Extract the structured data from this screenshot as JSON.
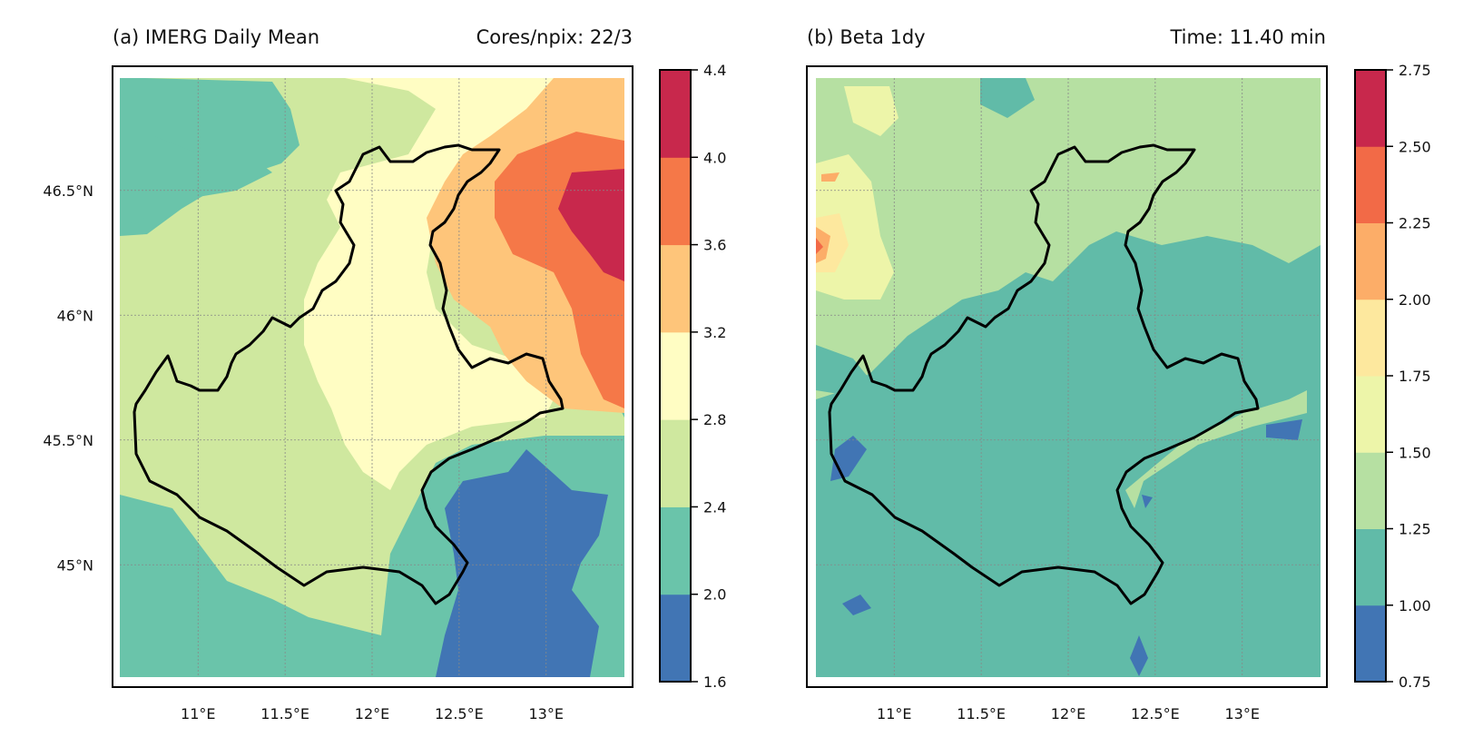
{
  "colors": {
    "scale": [
      "#4175b4",
      "#61bba8",
      "#b6e0a2",
      "#edf5a9",
      "#fde89e",
      "#fcad68",
      "#f26a47",
      "#c8284c"
    ],
    "scale_a": [
      "#4175b4",
      "#6ac4aa",
      "#cfe89f",
      "#fffdc3",
      "#fec57a",
      "#f57848",
      "#c8284c"
    ],
    "border": "#000000"
  },
  "chart_data": [
    {
      "type": "heatmap",
      "title": "(a) IMERG Daily Mean",
      "right_title": "Cores/npix: 22/3",
      "xlim": [
        10.55,
        13.45
      ],
      "ylim": [
        44.55,
        46.95
      ],
      "x_ticks": [
        11.0,
        11.5,
        12.0,
        12.5,
        13.0
      ],
      "x_tick_labels": [
        "11°E",
        "11.5°E",
        "12°E",
        "12.5°E",
        "13°E"
      ],
      "y_ticks": [
        45.0,
        45.5,
        46.0,
        46.5
      ],
      "y_tick_labels": [
        "45°N",
        "45.5°N",
        "46°N",
        "46.5°N"
      ],
      "colorbar": {
        "levels": [
          1.6,
          2.0,
          2.4,
          2.8,
          3.2,
          3.6,
          4.0,
          4.4
        ],
        "tick_labels": [
          "1.6",
          "2.0",
          "2.4",
          "2.8",
          "3.2",
          "3.6",
          "4.0",
          "4.4"
        ]
      },
      "value_range": [
        1.6,
        4.4
      ],
      "grid": true
    },
    {
      "type": "heatmap",
      "title": "(b) Beta 1dy",
      "right_title": "Time: 11.40 min",
      "xlim": [
        10.55,
        13.45
      ],
      "ylim": [
        44.55,
        46.95
      ],
      "x_ticks": [
        11.0,
        11.5,
        12.0,
        12.5,
        13.0
      ],
      "x_tick_labels": [
        "11°E",
        "11.5°E",
        "12°E",
        "12.5°E",
        "13°E"
      ],
      "colorbar": {
        "levels": [
          0.75,
          1.0,
          1.25,
          1.5,
          1.75,
          2.0,
          2.25,
          2.5,
          2.75
        ],
        "tick_labels": [
          "0.75",
          "1.00",
          "1.25",
          "1.50",
          "1.75",
          "2.00",
          "2.25",
          "2.50",
          "2.75"
        ]
      },
      "value_range": [
        0.75,
        2.75
      ],
      "grid": true
    }
  ]
}
